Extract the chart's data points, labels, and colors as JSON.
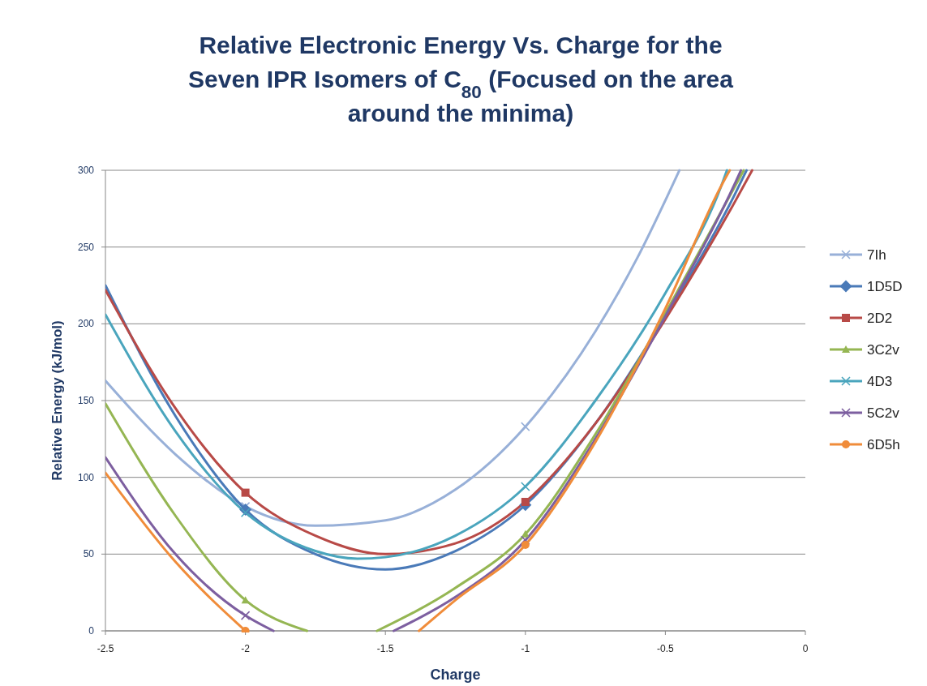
{
  "chart_data": {
    "type": "line",
    "title": "Relative Electronic Energy Vs. Charge for the Seven IPR Isomers of C$_{80}$ (Focused on the area around the minima)",
    "xlabel": "Charge",
    "ylabel": "Relative Energy (kJ/mol)",
    "xlim": [
      -2.5,
      0
    ],
    "xticks": [
      -2.5,
      -2,
      -1.5,
      -1,
      -0.5,
      0
    ],
    "ylim": [
      0,
      300
    ],
    "yticks": [
      0,
      50,
      100,
      150,
      200,
      250,
      300
    ],
    "grid": "y",
    "legend": "right",
    "line_style": "solid",
    "series": [
      {
        "name": "7Ih",
        "color": "#98b0d8",
        "x": [
          -2.5,
          -2.25,
          -2,
          -1.75,
          -1.5,
          -1.25,
          -1,
          -0.75,
          -0.6,
          -0.45
        ],
        "values": [
          163,
          115,
          81,
          68.5,
          72,
          92,
          133,
          195,
          243,
          300
        ]
      },
      {
        "name": "1D5D",
        "color": "#4a7ab8",
        "x": [
          -2.5,
          -2.25,
          -2,
          -1.75,
          -1.5,
          -1.25,
          -1,
          -0.75,
          -0.5,
          -0.25,
          -0.21
        ],
        "values": [
          225,
          140,
          79,
          50,
          40,
          52,
          82,
          135,
          205,
          285,
          300
        ]
      },
      {
        "name": "2D2",
        "color": "#b84a47",
        "x": [
          -2.5,
          -2.25,
          -2,
          -1.75,
          -1.5,
          -1.25,
          -1,
          -0.75,
          -0.5,
          -0.25,
          -0.19
        ],
        "values": [
          222,
          145,
          90,
          62,
          50,
          57,
          84,
          135,
          203,
          280,
          300
        ]
      },
      {
        "name": "3C2v",
        "color": "#95b653",
        "x": [
          -2.5,
          -2.25,
          -2,
          -1.78,
          -1.65,
          -1.53,
          -1.25,
          -1,
          -0.75,
          -0.5,
          -0.25,
          -0.22
        ],
        "values": [
          148,
          75,
          20,
          0,
          null,
          0,
          28,
          63,
          128,
          207,
          290,
          300
        ]
      },
      {
        "name": "4D3",
        "color": "#4aa5bd",
        "x": [
          -2.5,
          -2.25,
          -2,
          -1.75,
          -1.6,
          -1.5,
          -1.25,
          -1,
          -0.75,
          -0.5,
          -0.3,
          -0.28
        ],
        "values": [
          206,
          130,
          77,
          52,
          47,
          48,
          62,
          94,
          150,
          220,
          290,
          300
        ]
      },
      {
        "name": "5C2v",
        "color": "#7d5fa0",
        "x": [
          -2.5,
          -2.25,
          -2,
          -1.9,
          -1.7,
          -1.47,
          -1.25,
          -1,
          -0.75,
          -0.5,
          -0.25,
          -0.23
        ],
        "values": [
          113,
          50,
          10,
          0,
          null,
          0,
          22,
          59,
          125,
          205,
          292,
          300
        ]
      },
      {
        "name": "6D5h",
        "color": "#f08c3a",
        "x": [
          -2.5,
          -2.25,
          -2,
          -1.7,
          -1.38,
          -1.25,
          -1,
          -0.75,
          -0.5,
          -0.3,
          -0.27
        ],
        "values": [
          103,
          45,
          0,
          null,
          0,
          20,
          56,
          123,
          210,
          290,
          300
        ]
      },
      {
        "type": "scatter",
        "color": "#98b0d8",
        "marker": "cross",
        "x": [
          -2,
          -1
        ],
        "values": [
          81,
          133
        ]
      },
      {
        "type": "scatter",
        "color": "#4a7ab8",
        "marker": "diamond",
        "x": [
          -2,
          -1
        ],
        "values": [
          79,
          82
        ]
      },
      {
        "type": "scatter",
        "color": "#b84a47",
        "marker": "square",
        "x": [
          -2,
          -1
        ],
        "values": [
          90,
          84
        ]
      },
      {
        "type": "scatter",
        "color": "#95b653",
        "marker": "triangle",
        "x": [
          -2,
          -1
        ],
        "values": [
          20,
          63
        ]
      },
      {
        "type": "scatter",
        "color": "#4aa5bd",
        "marker": "cross",
        "x": [
          -2,
          -1
        ],
        "values": [
          77,
          94
        ]
      },
      {
        "type": "scatter",
        "color": "#7d5fa0",
        "marker": "cross",
        "x": [
          -2,
          -1
        ],
        "values": [
          10,
          59
        ]
      },
      {
        "type": "scatter",
        "color": "#f08c3a",
        "marker": "circle",
        "x": [
          -2,
          -1
        ],
        "values": [
          0,
          56
        ]
      }
    ]
  }
}
